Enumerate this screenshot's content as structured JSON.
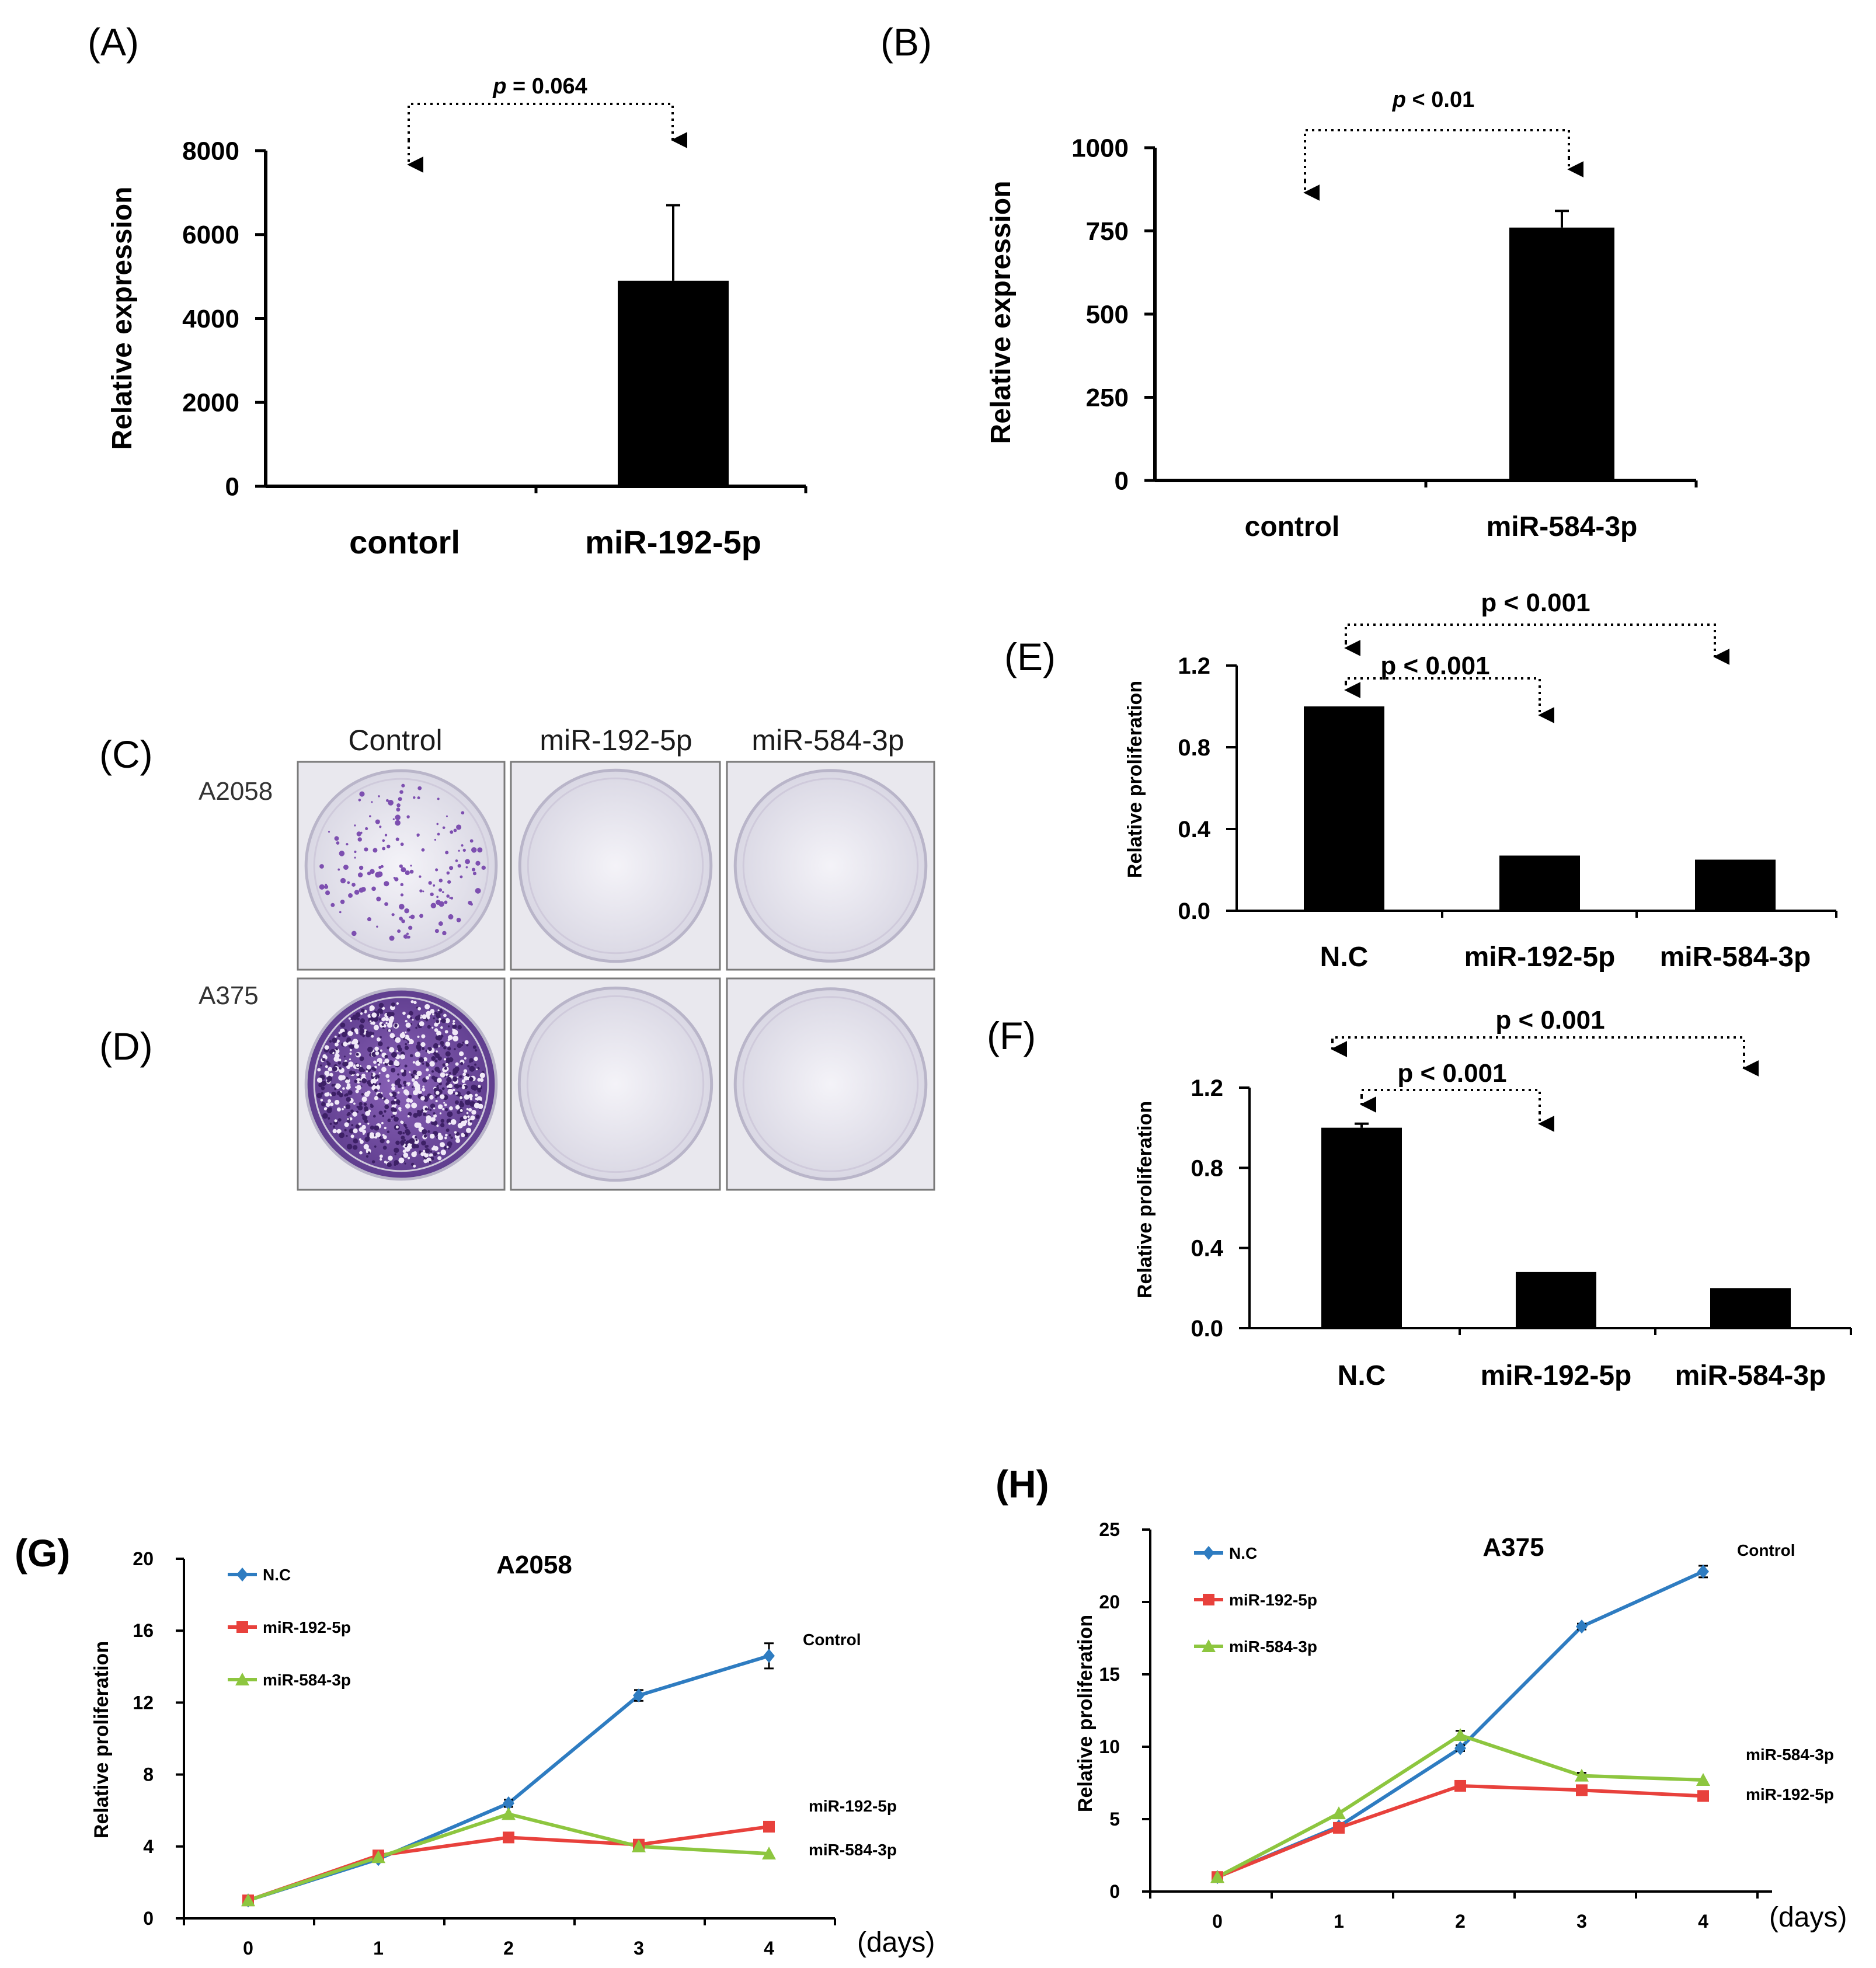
{
  "chart_data": [
    {
      "panel": "(A)",
      "type": "bar",
      "categories": [
        "contorl",
        "miR-192-5p"
      ],
      "values": [
        0,
        4900
      ],
      "errors": [
        0,
        1800
      ],
      "ylabel": "Relative expression",
      "yticks": [
        0,
        2000,
        4000,
        6000,
        8000
      ],
      "ylim": [
        0,
        8000
      ],
      "annotation": {
        "italic": "p",
        "text": " = 0.064"
      }
    },
    {
      "panel": "(B)",
      "type": "bar",
      "categories": [
        "control",
        "miR-584-3p"
      ],
      "values": [
        0,
        760
      ],
      "errors": [
        0,
        50
      ],
      "ylabel": "Relative expression",
      "yticks": [
        0,
        250,
        500,
        750,
        1000
      ],
      "ylim": [
        0,
        1000
      ],
      "annotation": {
        "italic": "p",
        "text": " < 0.01"
      }
    },
    {
      "panel": "(E)",
      "type": "bar",
      "categories": [
        "N.C",
        "miR-192-5p",
        "miR-584-3p"
      ],
      "values": [
        1.0,
        0.27,
        0.25
      ],
      "errors": [
        0,
        0,
        0
      ],
      "ylabel": "Relative proliferation",
      "yticks": [
        "0.0",
        "0.4",
        "0.8",
        "1.2"
      ],
      "ylim": [
        0,
        1.2
      ],
      "annotations": [
        "p < 0.001",
        "p < 0.001"
      ]
    },
    {
      "panel": "(F)",
      "type": "bar",
      "categories": [
        "N.C",
        "miR-192-5p",
        "miR-584-3p"
      ],
      "values": [
        1.0,
        0.28,
        0.2
      ],
      "errors": [
        0.02,
        0,
        0
      ],
      "ylabel": "Relative proliferation",
      "yticks": [
        "0.0",
        "0.4",
        "0.8",
        "1.2"
      ],
      "ylim": [
        0,
        1.2
      ],
      "annotations": [
        "p < 0.001",
        "p < 0.001"
      ]
    },
    {
      "panel": "(G)",
      "type": "line",
      "title": "A2058",
      "x": [
        0,
        1,
        2,
        3,
        4
      ],
      "xlabel": "(days)",
      "ylabel": "Relative proliferation",
      "yticks": [
        0,
        4,
        8,
        12,
        16,
        20
      ],
      "ylim": [
        0,
        20
      ],
      "series": [
        {
          "name": "N.C",
          "color": "#2e7cc1",
          "marker": "diamond",
          "values": [
            1.0,
            3.3,
            6.4,
            12.4,
            14.6
          ],
          "errors": [
            0,
            0.1,
            0.2,
            0.3,
            0.7
          ]
        },
        {
          "name": "miR-192-5p",
          "color": "#e8413c",
          "marker": "square",
          "values": [
            1.0,
            3.5,
            4.5,
            4.1,
            5.1
          ],
          "errors": [
            0,
            0,
            0,
            0,
            0
          ]
        },
        {
          "name": "miR-584-3p",
          "color": "#8dc63f",
          "marker": "triangle",
          "values": [
            1.0,
            3.4,
            5.8,
            4.0,
            3.6
          ],
          "errors": [
            0,
            0,
            0,
            0,
            0
          ]
        }
      ],
      "end_labels": [
        "Control",
        "miR-192-5p",
        "miR-584-3p"
      ]
    },
    {
      "panel": "(H)",
      "type": "line",
      "title": "A375",
      "x": [
        0,
        1,
        2,
        3,
        4
      ],
      "xlabel": "(days)",
      "ylabel": "Relative proliferation",
      "yticks": [
        0,
        5,
        10,
        15,
        20,
        25
      ],
      "ylim": [
        0,
        25
      ],
      "series": [
        {
          "name": "N.C",
          "color": "#2e7cc1",
          "marker": "diamond",
          "values": [
            1.0,
            4.5,
            9.9,
            18.3,
            22.1
          ],
          "errors": [
            0,
            0,
            0.2,
            0.2,
            0.4
          ]
        },
        {
          "name": "miR-192-5p",
          "color": "#e8413c",
          "marker": "square",
          "values": [
            1.0,
            4.4,
            7.3,
            7.0,
            6.6
          ],
          "errors": [
            0,
            0,
            0,
            0,
            0
          ]
        },
        {
          "name": "miR-584-3p",
          "color": "#8dc63f",
          "marker": "triangle",
          "values": [
            1.0,
            5.4,
            10.8,
            8.0,
            7.7
          ],
          "errors": [
            0,
            0,
            0.3,
            0.2,
            0
          ]
        }
      ],
      "end_labels": [
        "Control",
        "miR-584-3p",
        "miR-192-5p"
      ]
    }
  ],
  "colony_assay": {
    "panels": [
      "(C)",
      "(D)"
    ],
    "columns": [
      "Control",
      "miR-192-5p",
      "miR-584-3p"
    ],
    "rows": [
      "A2058",
      "A375"
    ]
  }
}
